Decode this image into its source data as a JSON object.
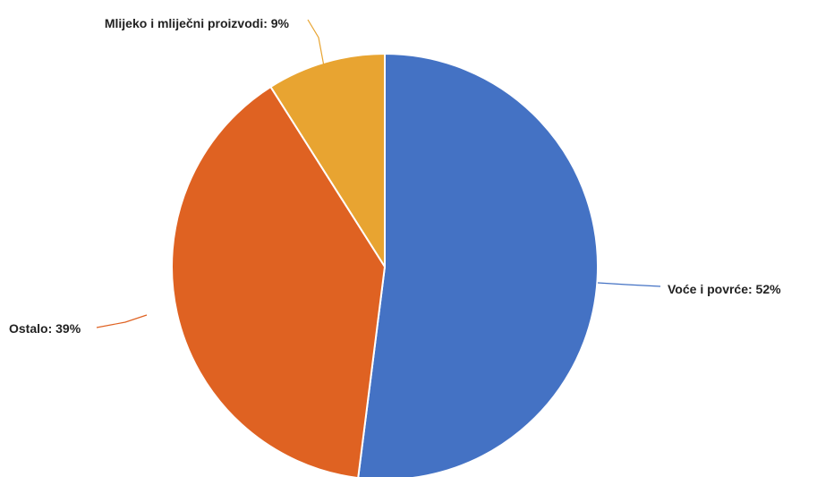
{
  "chart_data": {
    "type": "pie",
    "slices": [
      {
        "name": "Voće i povrće",
        "value": 52,
        "color": "#4472C4",
        "label": "Voće i povrće: 52%"
      },
      {
        "name": "Ostalo",
        "value": 39,
        "color": "#DF6222",
        "label": "Ostalo: 39%"
      },
      {
        "name": "Mlijeko i mliječni proizvodi",
        "value": 9,
        "color": "#E8A431",
        "label": "Mlijeko i mliječni proizvodi: 9%"
      }
    ],
    "unit": "%",
    "start_angle": "12 o'clock",
    "direction": "clockwise",
    "legend": "none (labels beside slices with leader lines)"
  }
}
